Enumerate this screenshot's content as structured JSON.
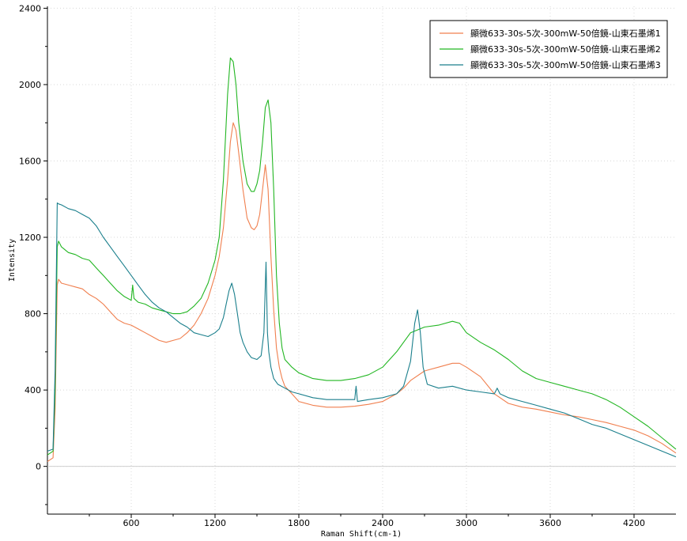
{
  "chart_data": {
    "type": "line",
    "title": "",
    "xlabel": "Raman Shift(cm-1)",
    "ylabel": "Intensity",
    "xlim": [
      0,
      4500
    ],
    "ylim": [
      -250,
      2410
    ],
    "x_ticks": [
      600,
      1200,
      1800,
      2400,
      3000,
      3600,
      4200
    ],
    "y_ticks": [
      0,
      400,
      800,
      1200,
      1600,
      2000,
      2400
    ],
    "grid": true,
    "legend_position": "top-right",
    "series": [
      {
        "name": "顯微633-30s-5次-300mW-50倍鏡-山東石墨烯1",
        "color": "#f07f4e",
        "x": [
          0,
          40,
          55,
          70,
          80,
          100,
          150,
          200,
          250,
          300,
          350,
          400,
          450,
          500,
          550,
          600,
          650,
          700,
          750,
          800,
          850,
          900,
          950,
          1000,
          1050,
          1100,
          1150,
          1200,
          1230,
          1260,
          1290,
          1310,
          1330,
          1350,
          1370,
          1400,
          1430,
          1460,
          1480,
          1500,
          1520,
          1540,
          1560,
          1580,
          1600,
          1620,
          1640,
          1660,
          1680,
          1700,
          1750,
          1800,
          1900,
          2000,
          2100,
          2200,
          2300,
          2400,
          2500,
          2550,
          2600,
          2700,
          2800,
          2900,
          2950,
          3000,
          3100,
          3200,
          3300,
          3400,
          3500,
          3600,
          3700,
          3800,
          3900,
          4000,
          4100,
          4200,
          4300,
          4400,
          4500
        ],
        "y": [
          25,
          45,
          300,
          950,
          980,
          960,
          950,
          940,
          930,
          900,
          880,
          850,
          810,
          770,
          750,
          740,
          720,
          700,
          680,
          660,
          650,
          660,
          670,
          700,
          740,
          800,
          880,
          1000,
          1100,
          1250,
          1500,
          1700,
          1800,
          1760,
          1640,
          1450,
          1300,
          1250,
          1240,
          1260,
          1320,
          1450,
          1580,
          1450,
          1100,
          820,
          620,
          520,
          460,
          420,
          380,
          340,
          320,
          310,
          310,
          315,
          325,
          340,
          380,
          410,
          450,
          500,
          520,
          540,
          540,
          520,
          470,
          380,
          330,
          310,
          300,
          285,
          270,
          260,
          245,
          230,
          210,
          190,
          160,
          120,
          70
        ]
      },
      {
        "name": "顯微633-30s-5次-300mW-50倍鏡-山東石墨烯2",
        "color": "#22b622",
        "x": [
          0,
          40,
          55,
          70,
          80,
          100,
          150,
          200,
          250,
          300,
          350,
          400,
          450,
          500,
          550,
          600,
          610,
          620,
          650,
          700,
          750,
          800,
          850,
          900,
          950,
          1000,
          1050,
          1100,
          1150,
          1200,
          1230,
          1260,
          1290,
          1310,
          1330,
          1350,
          1370,
          1400,
          1430,
          1460,
          1480,
          1500,
          1520,
          1540,
          1560,
          1580,
          1600,
          1620,
          1640,
          1660,
          1680,
          1700,
          1750,
          1800,
          1900,
          2000,
          2100,
          2200,
          2300,
          2400,
          2500,
          2600,
          2700,
          2800,
          2900,
          2950,
          3000,
          3100,
          3200,
          3300,
          3400,
          3500,
          3600,
          3700,
          3800,
          3900,
          4000,
          4100,
          4200,
          4300,
          4400,
          4500
        ],
        "y": [
          60,
          80,
          400,
          1150,
          1180,
          1150,
          1120,
          1110,
          1090,
          1080,
          1040,
          1000,
          960,
          920,
          890,
          870,
          950,
          880,
          860,
          850,
          830,
          820,
          810,
          800,
          800,
          810,
          840,
          880,
          960,
          1080,
          1200,
          1500,
          1950,
          2140,
          2120,
          2000,
          1800,
          1600,
          1480,
          1440,
          1440,
          1480,
          1550,
          1700,
          1880,
          1920,
          1800,
          1450,
          1000,
          750,
          620,
          560,
          520,
          490,
          460,
          450,
          450,
          460,
          480,
          520,
          600,
          700,
          730,
          740,
          760,
          750,
          700,
          650,
          610,
          560,
          500,
          460,
          440,
          420,
          400,
          380,
          350,
          310,
          260,
          210,
          150,
          90
        ]
      },
      {
        "name": "顯微633-30s-5次-300mW-50倍鏡-山東石墨烯3",
        "color": "#1a7f8c",
        "x": [
          0,
          40,
          55,
          70,
          80,
          100,
          150,
          200,
          250,
          300,
          350,
          400,
          450,
          500,
          550,
          600,
          650,
          700,
          750,
          800,
          850,
          900,
          950,
          1000,
          1050,
          1100,
          1150,
          1200,
          1230,
          1260,
          1280,
          1300,
          1320,
          1340,
          1360,
          1380,
          1400,
          1430,
          1460,
          1500,
          1530,
          1550,
          1565,
          1575,
          1585,
          1600,
          1620,
          1650,
          1700,
          1750,
          1800,
          1900,
          2000,
          2100,
          2200,
          2210,
          2220,
          2300,
          2400,
          2500,
          2550,
          2600,
          2630,
          2650,
          2670,
          2690,
          2720,
          2800,
          2900,
          3000,
          3100,
          3200,
          3220,
          3240,
          3300,
          3400,
          3500,
          3600,
          3700,
          3800,
          3900,
          4000,
          4100,
          4200,
          4300,
          4400,
          4500
        ],
        "y": [
          80,
          90,
          500,
          1380,
          1375,
          1370,
          1350,
          1340,
          1320,
          1300,
          1260,
          1200,
          1150,
          1100,
          1050,
          1000,
          950,
          900,
          860,
          830,
          810,
          780,
          750,
          730,
          700,
          690,
          680,
          700,
          720,
          780,
          850,
          920,
          960,
          900,
          800,
          700,
          650,
          600,
          570,
          560,
          580,
          700,
          1070,
          700,
          600,
          520,
          460,
          430,
          410,
          390,
          380,
          360,
          350,
          350,
          350,
          420,
          340,
          350,
          360,
          380,
          420,
          550,
          750,
          820,
          700,
          520,
          430,
          410,
          420,
          400,
          390,
          380,
          410,
          380,
          360,
          340,
          320,
          300,
          280,
          250,
          220,
          200,
          170,
          140,
          110,
          80,
          50
        ]
      }
    ]
  }
}
